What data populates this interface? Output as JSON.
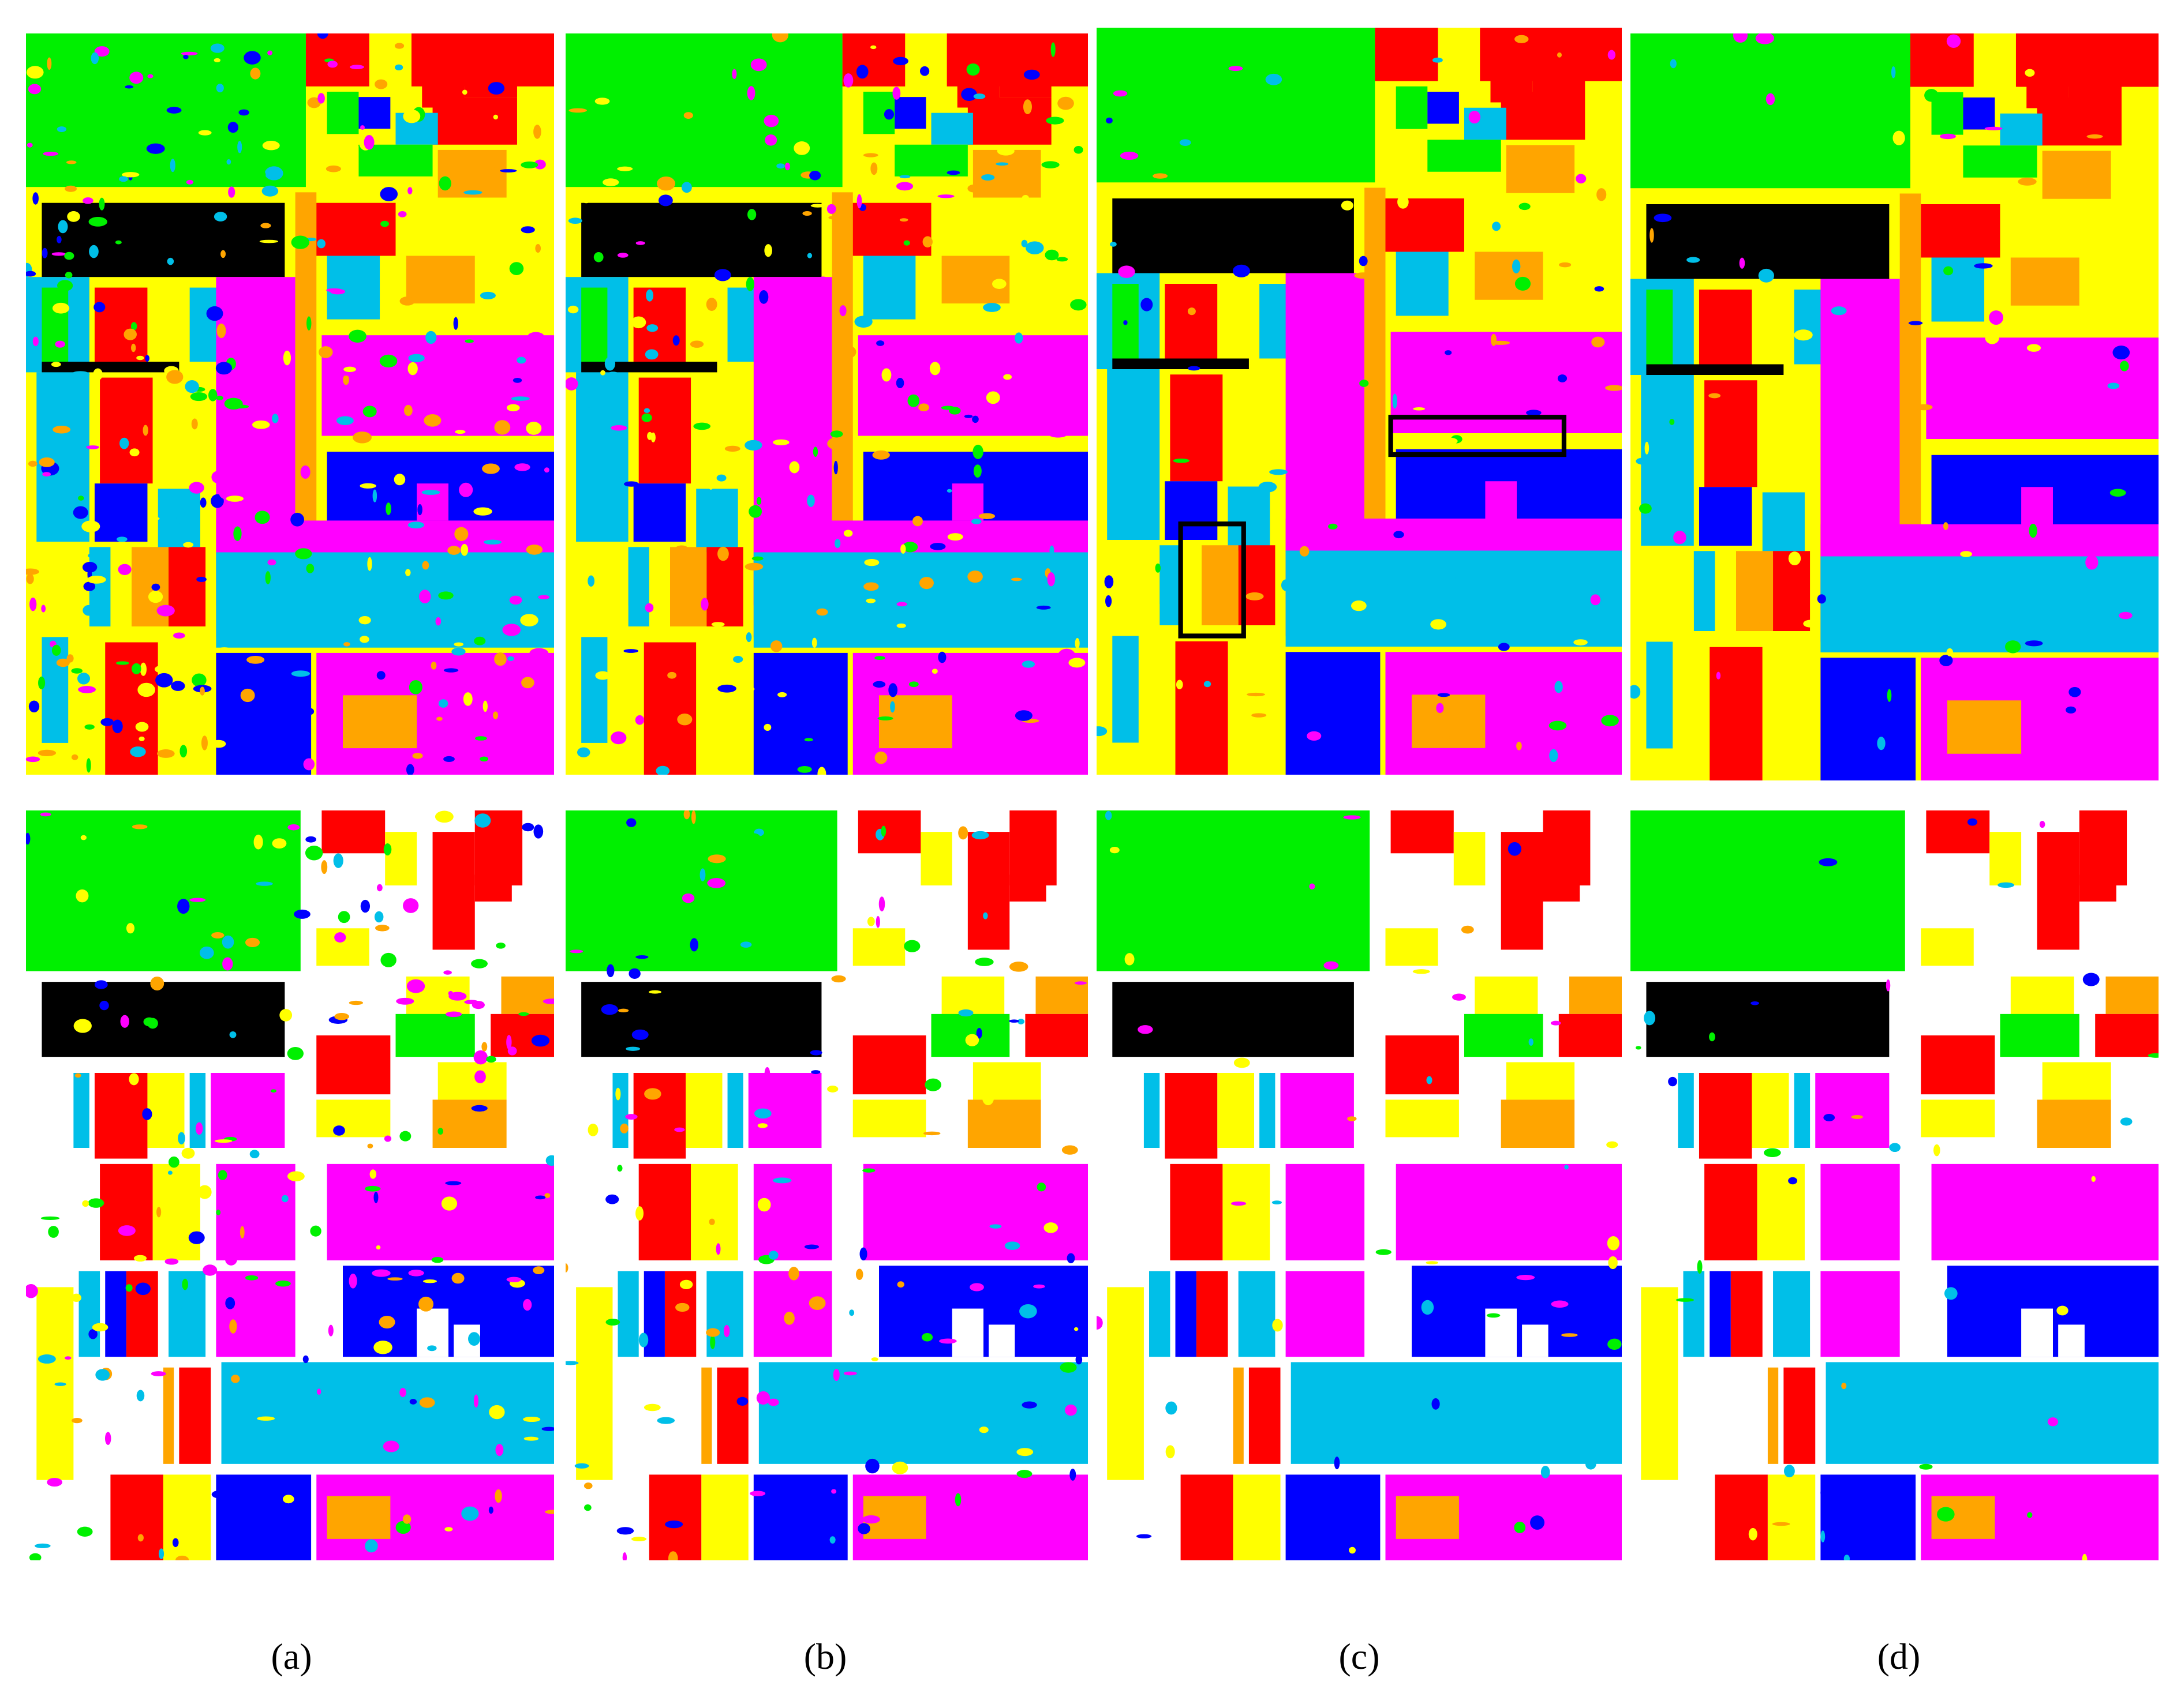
{
  "figure": {
    "captions": [
      "(a)",
      "(b)",
      "(c)",
      "(d)"
    ],
    "class_colors": {
      "vegetation": "#00f000",
      "asphalt": "#000000",
      "red_class": "#ff0000",
      "yellow_class": "#ffff00",
      "magenta_class": "#ff00ff",
      "blue_class": "#0000ff",
      "cyan_class": "#00bfe8",
      "orange_class": "#ffa500",
      "unlabeled": "#ffffff"
    }
  }
}
